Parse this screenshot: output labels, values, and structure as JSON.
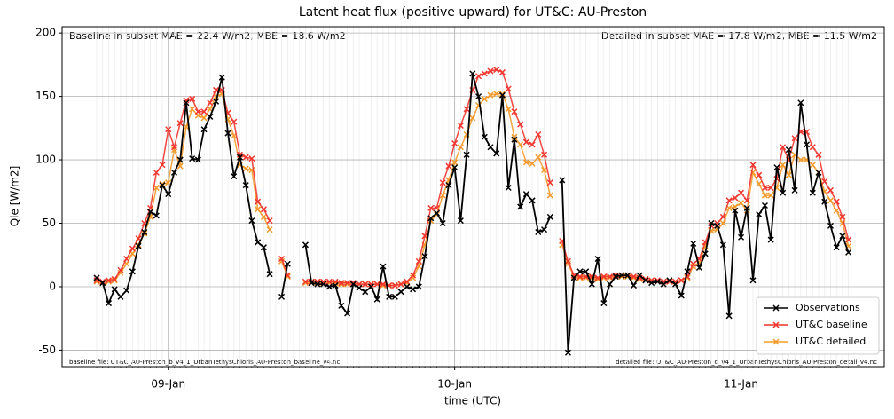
{
  "chart_data": {
    "type": "line",
    "title": "Latent heat flux (positive upward) for UT&C: AU-Preston",
    "x_label": "time (UTC)",
    "y_label": "Qle [W/m2]",
    "annotations": [
      "Baseline in subset MAE = 22.4 W/m2, MBE = 18.6 W/m2",
      "Detailed in subset MAE = 17.8 W/m2, MBE = 11.5 W/m2",
      "baseline file: UT&C_AU-Preston_b_v4_1_UrbanTethysChloris_AU-Preston_baseline_v4.nc",
      "detailed file: UT&C_AU-Preston_d_v4_1_UrbanTethysChloris_AU-Preston_detail_v4.nc"
    ],
    "x": [
      -6,
      -5.5,
      -5,
      -4.5,
      -4,
      -3.5,
      -3,
      -2.5,
      -2,
      -1.5,
      -1,
      -0.5,
      0,
      0.5,
      1,
      1.5,
      2,
      2.5,
      3,
      3.5,
      4,
      4.5,
      5,
      5.5,
      6,
      6.5,
      7,
      7.5,
      8,
      8.5,
      9,
      9.5,
      10,
      10.5,
      11,
      11.5,
      12,
      12.5,
      13,
      13.5,
      14,
      14.5,
      15,
      15.5,
      16,
      16.5,
      17,
      17.5,
      18,
      18.5,
      19,
      19.5,
      20,
      20.5,
      21,
      21.5,
      22,
      22.5,
      23,
      23.5,
      24,
      24.5,
      25,
      25.5,
      26,
      26.5,
      27,
      27.5,
      28,
      28.5,
      29,
      29.5,
      30,
      30.5,
      31,
      31.5,
      32,
      32.5,
      33,
      33.5,
      34,
      34.5,
      35,
      35.5,
      36,
      36.5,
      37,
      37.5,
      38,
      38.5,
      39,
      39.5,
      40,
      40.5,
      41,
      41.5,
      42,
      42.5,
      43,
      43.5,
      44,
      44.5,
      45,
      45.5,
      46,
      46.5,
      47,
      47.5,
      48,
      48.5,
      49,
      49.5,
      50,
      50.5,
      51,
      51.5,
      52,
      52.5,
      53,
      53.5,
      54,
      54.5,
      55,
      55.5,
      56,
      56.5,
      57
    ],
    "series": [
      {
        "name": "Observations",
        "color": "#000000",
        "values": [
          7,
          3,
          -13,
          -2,
          -8,
          -3,
          12,
          32,
          43,
          59,
          56,
          80,
          73,
          90,
          100,
          145,
          101,
          100,
          124,
          134,
          146,
          165,
          121,
          87,
          102,
          80,
          52,
          35,
          31,
          10,
          null,
          -8,
          18,
          null,
          null,
          33,
          3,
          2,
          2,
          0,
          1,
          -15,
          -21,
          2,
          -1,
          -4,
          0,
          -10,
          16,
          -8,
          -8,
          -4,
          0,
          -2,
          0,
          24,
          54,
          58,
          50,
          80,
          94,
          52,
          104,
          168,
          150,
          118,
          110,
          105,
          151,
          78,
          116,
          63,
          73,
          68,
          43,
          45,
          55,
          null,
          84,
          -52,
          7,
          12,
          12,
          2,
          22,
          -13,
          2,
          8,
          9,
          9,
          1,
          9,
          5,
          3,
          4,
          2,
          5,
          2,
          -7,
          12,
          34,
          15,
          26,
          50,
          48,
          33,
          -23,
          60,
          39,
          62,
          5,
          57,
          64,
          37,
          94,
          74,
          108,
          76,
          145,
          112,
          74,
          90,
          67,
          48,
          31,
          40,
          27
        ]
      },
      {
        "name": "UT&C baseline",
        "color": "#f0352d",
        "values": [
          5,
          4,
          5,
          6,
          13,
          22,
          30,
          38,
          50,
          62,
          90,
          96,
          124,
          110,
          129,
          147,
          148,
          138,
          138,
          145,
          155,
          155,
          137,
          130,
          104,
          102,
          101,
          67,
          61,
          52,
          null,
          22,
          9,
          null,
          null,
          4,
          4,
          4,
          4,
          4,
          4,
          3,
          3,
          3,
          2,
          2,
          2,
          2,
          2,
          1,
          1,
          2,
          4,
          9,
          20,
          40,
          62,
          62,
          82,
          95,
          113,
          127,
          140,
          155,
          166,
          168,
          170,
          171,
          169,
          156,
          138,
          128,
          114,
          112,
          120,
          104,
          82,
          null,
          36,
          20,
          9,
          8,
          8,
          8,
          7,
          8,
          8,
          9,
          9,
          9,
          8,
          7,
          6,
          5,
          5,
          4,
          4,
          4,
          5,
          8,
          18,
          22,
          35,
          48,
          50,
          55,
          68,
          70,
          74,
          68,
          96,
          88,
          78,
          78,
          85,
          110,
          100,
          117,
          122,
          122,
          110,
          104,
          83,
          76,
          67,
          55,
          37
        ]
      },
      {
        "name": "UT&C detailed",
        "color": "#f59a2a",
        "values": [
          4,
          3,
          4,
          5,
          11,
          18,
          26,
          33,
          42,
          55,
          78,
          81,
          82,
          108,
          95,
          126,
          140,
          135,
          133,
          140,
          150,
          152,
          132,
          119,
          96,
          93,
          92,
          61,
          55,
          45,
          null,
          20,
          8,
          null,
          null,
          3,
          3,
          3,
          3,
          3,
          3,
          2,
          2,
          2,
          2,
          2,
          2,
          2,
          1,
          1,
          1,
          2,
          3,
          7,
          16,
          33,
          52,
          57,
          72,
          84,
          98,
          110,
          120,
          133,
          143,
          148,
          151,
          152,
          152,
          140,
          118,
          112,
          98,
          97,
          102,
          92,
          72,
          null,
          33,
          18,
          8,
          7,
          7,
          7,
          6,
          7,
          7,
          8,
          8,
          8,
          7,
          6,
          5,
          5,
          4,
          4,
          4,
          4,
          5,
          7,
          16,
          19,
          32,
          44,
          45,
          50,
          62,
          63,
          66,
          60,
          90,
          81,
          72,
          72,
          78,
          96,
          88,
          104,
          100,
          100,
          96,
          90,
          75,
          68,
          60,
          50,
          32
        ]
      }
    ],
    "xlim": [
      -8.9,
      60
    ],
    "xticks": [
      {
        "value": 0,
        "label": "09-Jan"
      },
      {
        "value": 24,
        "label": "10-Jan"
      },
      {
        "value": 48,
        "label": "11-Jan"
      }
    ],
    "ylim": [
      -63,
      205
    ],
    "yticks": [
      -50,
      0,
      50,
      100,
      150,
      200
    ],
    "grid": true,
    "legend": "lower right"
  }
}
